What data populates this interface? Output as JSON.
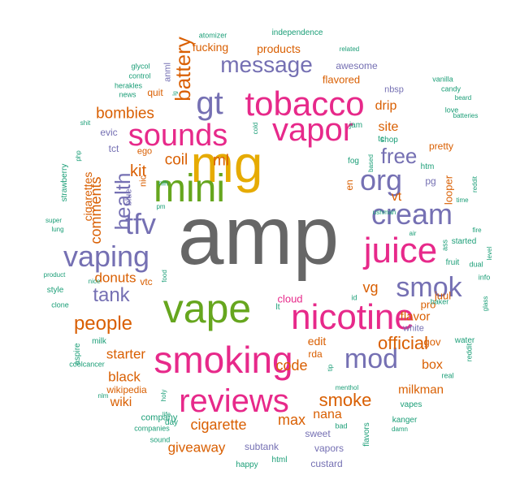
{
  "colors": {
    "orange": "#d95f02",
    "teal": "#1b9e77",
    "purple": "#7570b3",
    "pink": "#e7298a",
    "green": "#66a61e",
    "gold": "#e6ab02",
    "gray": "#666666"
  },
  "words": [
    {
      "text": "amp",
      "color": "gray",
      "weight": 100
    },
    {
      "text": "mg",
      "color": "gold",
      "weight": 60
    },
    {
      "text": "vape",
      "color": "green",
      "weight": 55
    },
    {
      "text": "smoking",
      "color": "pink",
      "weight": 50
    },
    {
      "text": "mini",
      "color": "green",
      "weight": 48
    },
    {
      "text": "nicotine",
      "color": "pink",
      "weight": 44
    },
    {
      "text": "tobacco",
      "color": "pink",
      "weight": 42
    },
    {
      "text": "vapor",
      "color": "pink",
      "weight": 42
    },
    {
      "text": "sounds",
      "color": "pink",
      "weight": 40
    },
    {
      "text": "juice",
      "color": "pink",
      "weight": 40
    },
    {
      "text": "reviews",
      "color": "pink",
      "weight": 40
    },
    {
      "text": "cream",
      "color": "purple",
      "weight": 36
    },
    {
      "text": "gt",
      "color": "purple",
      "weight": 36
    },
    {
      "text": "org",
      "color": "purple",
      "weight": 34
    },
    {
      "text": "tfv",
      "color": "purple",
      "weight": 34
    },
    {
      "text": "vaping",
      "color": "purple",
      "weight": 34
    },
    {
      "text": "mod",
      "color": "purple",
      "weight": 34
    },
    {
      "text": "smok",
      "color": "purple",
      "weight": 33
    },
    {
      "text": "message",
      "color": "purple",
      "weight": 26
    },
    {
      "text": "free",
      "color": "purple",
      "weight": 25
    },
    {
      "text": "health",
      "color": "purple",
      "weight": 25
    },
    {
      "text": "tank",
      "color": "purple",
      "weight": 24
    },
    {
      "text": "battery",
      "color": "orange",
      "weight": 25
    },
    {
      "text": "people",
      "color": "orange",
      "weight": 24
    },
    {
      "text": "smoke",
      "color": "orange",
      "weight": 22
    },
    {
      "text": "official",
      "color": "orange",
      "weight": 22
    },
    {
      "text": "bombies",
      "color": "orange",
      "weight": 18
    },
    {
      "text": "coil",
      "color": "orange",
      "weight": 18
    },
    {
      "text": "ml",
      "color": "orange",
      "weight": 18
    },
    {
      "text": "kit",
      "color": "orange",
      "weight": 18
    },
    {
      "text": "comments",
      "color": "orange",
      "weight": 17
    },
    {
      "text": "donuts",
      "color": "orange",
      "weight": 17
    },
    {
      "text": "vg",
      "color": "orange",
      "weight": 18
    },
    {
      "text": "starter",
      "color": "orange",
      "weight": 17
    },
    {
      "text": "code",
      "color": "orange",
      "weight": 18
    },
    {
      "text": "black",
      "color": "orange",
      "weight": 17
    },
    {
      "text": "cigarette",
      "color": "orange",
      "weight": 17
    },
    {
      "text": "giveaway",
      "color": "orange",
      "weight": 17
    },
    {
      "text": "max",
      "color": "orange",
      "weight": 17
    },
    {
      "text": "nana",
      "color": "orange",
      "weight": 15
    },
    {
      "text": "milkman",
      "color": "orange",
      "weight": 14
    },
    {
      "text": "wiki",
      "color": "orange",
      "weight": 15
    },
    {
      "text": "box",
      "color": "orange",
      "weight": 15
    },
    {
      "text": "flavor",
      "color": "orange",
      "weight": 14
    },
    {
      "text": "edit",
      "color": "orange",
      "weight": 14
    },
    {
      "text": "drip",
      "color": "orange",
      "weight": 15
    },
    {
      "text": "site",
      "color": "orange",
      "weight": 16
    },
    {
      "text": "vt",
      "color": "orange",
      "weight": 15
    },
    {
      "text": "products",
      "color": "orange",
      "weight": 14
    },
    {
      "text": "fucking",
      "color": "orange",
      "weight": 14
    },
    {
      "text": "flavored",
      "color": "orange",
      "weight": 13
    },
    {
      "text": "cigarettes",
      "color": "orange",
      "weight": 14
    },
    {
      "text": "wikipedia",
      "color": "orange",
      "weight": 12
    },
    {
      "text": "looper",
      "color": "orange",
      "weight": 13
    },
    {
      "text": "pro",
      "color": "orange",
      "weight": 13
    },
    {
      "text": "gov",
      "color": "orange",
      "weight": 13
    },
    {
      "text": "juul",
      "color": "orange",
      "weight": 13
    },
    {
      "text": "en",
      "color": "orange",
      "weight": 12
    },
    {
      "text": "rda",
      "color": "orange",
      "weight": 12
    },
    {
      "text": "pretty",
      "color": "orange",
      "weight": 12
    },
    {
      "text": "quit",
      "color": "orange",
      "weight": 12
    },
    {
      "text": "ego",
      "color": "orange",
      "weight": 11
    },
    {
      "text": "nic",
      "color": "orange",
      "weight": 11
    },
    {
      "text": "vtc",
      "color": "orange",
      "weight": 12
    },
    {
      "text": "tct",
      "color": "purple",
      "weight": 12
    },
    {
      "text": "evic",
      "color": "purple",
      "weight": 12
    },
    {
      "text": "blue",
      "color": "purple",
      "weight": 11
    },
    {
      "text": "cloud",
      "color": "pink",
      "weight": 13
    },
    {
      "text": "sweet",
      "color": "purple",
      "weight": 12
    },
    {
      "text": "subtank",
      "color": "purple",
      "weight": 12
    },
    {
      "text": "vapors",
      "color": "purple",
      "weight": 12
    },
    {
      "text": "custard",
      "color": "purple",
      "weight": 12
    },
    {
      "text": "awesome",
      "color": "purple",
      "weight": 12
    },
    {
      "text": "nbsp",
      "color": "purple",
      "weight": 11
    },
    {
      "text": "white",
      "color": "purple",
      "weight": 11
    },
    {
      "text": "anml",
      "color": "purple",
      "weight": 11
    },
    {
      "text": "atomizer",
      "color": "teal",
      "weight": 9
    },
    {
      "text": "independence",
      "color": "teal",
      "weight": 10
    },
    {
      "text": "related",
      "color": "teal",
      "weight": 8
    },
    {
      "text": "glycol",
      "color": "teal",
      "weight": 9
    },
    {
      "text": "control",
      "color": "teal",
      "weight": 9
    },
    {
      "text": "herakles",
      "color": "teal",
      "weight": 9
    },
    {
      "text": "news",
      "color": "teal",
      "weight": 9
    },
    {
      "text": "shit",
      "color": "teal",
      "weight": 8
    },
    {
      "text": "strawberry",
      "color": "teal",
      "weight": 10
    },
    {
      "text": "super",
      "color": "teal",
      "weight": 8
    },
    {
      "text": "lung",
      "color": "teal",
      "weight": 8
    },
    {
      "text": "product",
      "color": "teal",
      "weight": 8
    },
    {
      "text": "style",
      "color": "teal",
      "weight": 10
    },
    {
      "text": "clone",
      "color": "teal",
      "weight": 9
    },
    {
      "text": "aspire",
      "color": "teal",
      "weight": 10
    },
    {
      "text": "coolcancer",
      "color": "teal",
      "weight": 9
    },
    {
      "text": "milk",
      "color": "teal",
      "weight": 10
    },
    {
      "text": "nlm",
      "color": "teal",
      "weight": 8
    },
    {
      "text": "company",
      "color": "teal",
      "weight": 11
    },
    {
      "text": "companies",
      "color": "teal",
      "weight": 9
    },
    {
      "text": "sound",
      "color": "teal",
      "weight": 9
    },
    {
      "text": "day",
      "color": "teal",
      "weight": 10
    },
    {
      "text": "holy",
      "color": "teal",
      "weight": 8
    },
    {
      "text": "life",
      "color": "teal",
      "weight": 8
    },
    {
      "text": "happy",
      "color": "teal",
      "weight": 10
    },
    {
      "text": "html",
      "color": "teal",
      "weight": 10
    },
    {
      "text": "flavors",
      "color": "teal",
      "weight": 10
    },
    {
      "text": "bad",
      "color": "teal",
      "weight": 9
    },
    {
      "text": "menthol",
      "color": "teal",
      "weight": 8
    },
    {
      "text": "kanger",
      "color": "teal",
      "weight": 10
    },
    {
      "text": "vapes",
      "color": "teal",
      "weight": 10
    },
    {
      "text": "damn",
      "color": "teal",
      "weight": 8
    },
    {
      "text": "reddit",
      "color": "teal",
      "weight": 9
    },
    {
      "text": "real",
      "color": "teal",
      "weight": 9
    },
    {
      "text": "water",
      "color": "teal",
      "weight": 10
    },
    {
      "text": "glass",
      "color": "teal",
      "weight": 8
    },
    {
      "text": "baker",
      "color": "teal",
      "weight": 9
    },
    {
      "text": "info",
      "color": "teal",
      "weight": 9
    },
    {
      "text": "dual",
      "color": "teal",
      "weight": 9
    },
    {
      "text": "fruit",
      "color": "teal",
      "weight": 10
    },
    {
      "text": "level",
      "color": "teal",
      "weight": 8
    },
    {
      "text": "fire",
      "color": "teal",
      "weight": 8
    },
    {
      "text": "started",
      "color": "teal",
      "weight": 10
    },
    {
      "text": "ass",
      "color": "teal",
      "weight": 9
    },
    {
      "text": "air",
      "color": "teal",
      "weight": 8
    },
    {
      "text": "ushmah",
      "color": "teal",
      "weight": 8
    },
    {
      "text": "htm",
      "color": "teal",
      "weight": 10
    },
    {
      "text": "time",
      "color": "teal",
      "weight": 8
    },
    {
      "text": "reddit2",
      "color": "teal",
      "weight": 8
    },
    {
      "text": "love",
      "color": "teal",
      "weight": 9
    },
    {
      "text": "candy",
      "color": "teal",
      "weight": 9
    },
    {
      "text": "vanilla",
      "color": "teal",
      "weight": 9
    },
    {
      "text": "beard",
      "color": "teal",
      "weight": 8
    },
    {
      "text": "batteries",
      "color": "teal",
      "weight": 8
    },
    {
      "text": "shop",
      "color": "teal",
      "weight": 10
    },
    {
      "text": "jam",
      "color": "teal",
      "weight": 10
    },
    {
      "text": "tc",
      "color": "teal",
      "weight": 10
    },
    {
      "text": "fog",
      "color": "teal",
      "weight": 10
    },
    {
      "text": "based",
      "color": "teal",
      "weight": 8
    },
    {
      "text": "cold",
      "color": "teal",
      "weight": 8
    },
    {
      "text": "nih",
      "color": "teal",
      "weight": 9
    },
    {
      "text": "pm",
      "color": "teal",
      "weight": 8
    },
    {
      "text": "nice",
      "color": "teal",
      "weight": 8
    },
    {
      "text": "food",
      "color": "teal",
      "weight": 8
    },
    {
      "text": "php",
      "color": "teal",
      "weight": 8
    },
    {
      "text": "lg",
      "color": "teal",
      "weight": 7
    },
    {
      "text": "tip",
      "color": "teal",
      "weight": 8
    },
    {
      "text": "id",
      "color": "teal",
      "weight": 9
    },
    {
      "text": "lt",
      "color": "teal",
      "weight": 10
    },
    {
      "text": "pg",
      "color": "purple",
      "weight": 12
    }
  ]
}
